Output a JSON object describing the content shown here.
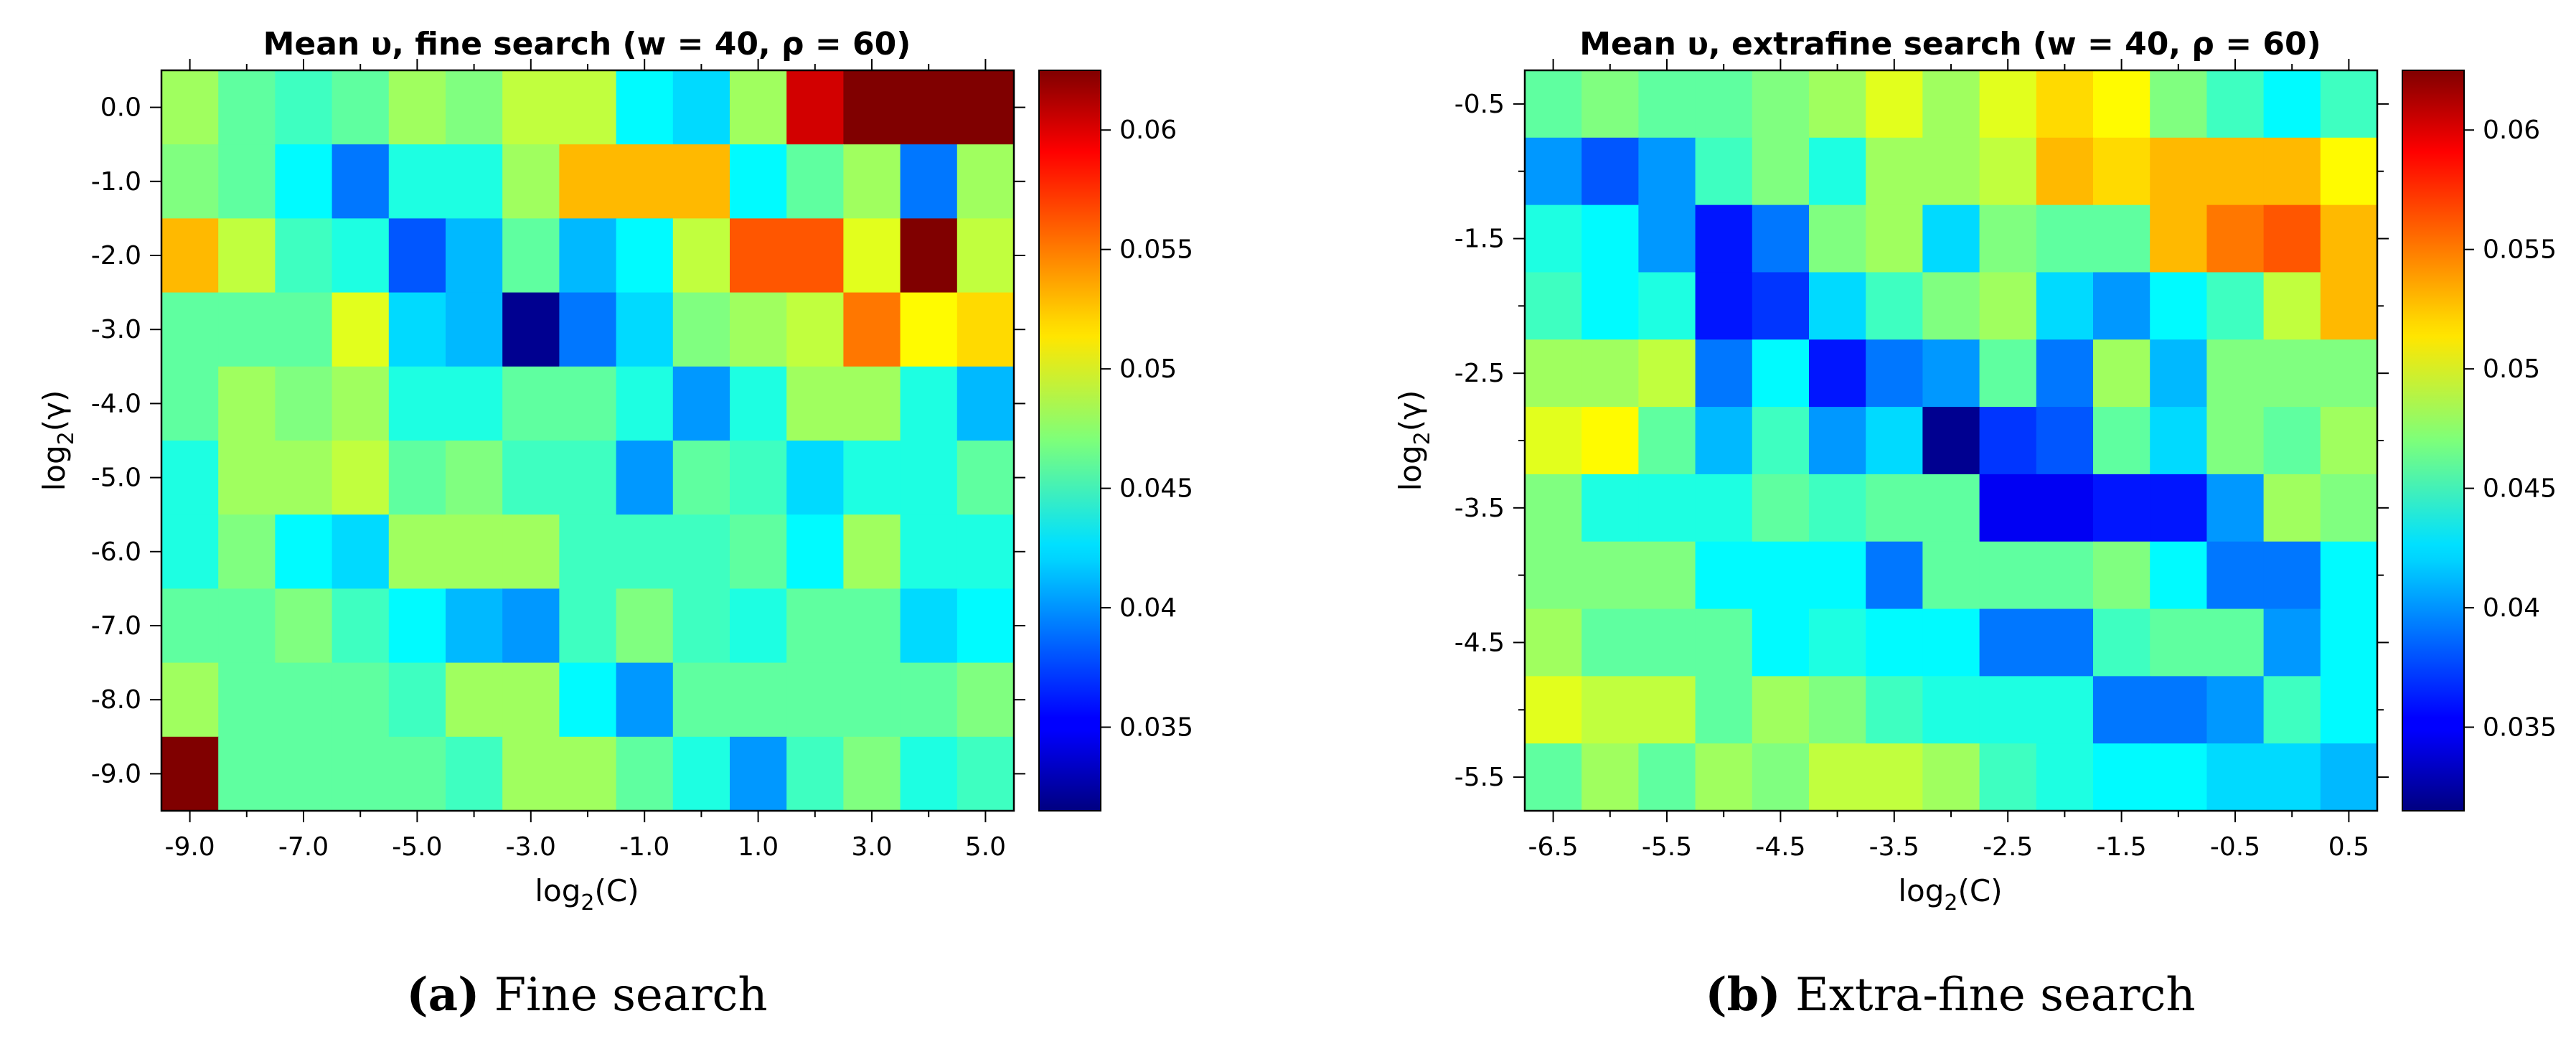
{
  "chart_data": [
    {
      "type": "heatmap",
      "title": "Mean υ, fine search (w = 40, ρ = 60)",
      "xlabel": "log2(C)",
      "ylabel": "log2(γ)",
      "x_tick_labels": [
        "-9.0",
        "-7.0",
        "-5.0",
        "-3.0",
        "-1.0",
        "1.0",
        "3.0",
        "5.0"
      ],
      "y_tick_labels": [
        "0.0",
        "-1.0",
        "-2.0",
        "-3.0",
        "-4.0",
        "-5.0",
        "-6.0",
        "-7.0",
        "-8.0",
        "-9.0"
      ],
      "x_values": [
        -9,
        -8,
        -7,
        -6,
        -5,
        -4,
        -3,
        -2,
        -1,
        0,
        1,
        2,
        3,
        4,
        5
      ],
      "y_values": [
        0,
        -1,
        -2,
        -3,
        -4,
        -5,
        -6,
        -7,
        -8,
        -9
      ],
      "z": [
        [
          0.048,
          0.046,
          0.045,
          0.046,
          0.048,
          0.047,
          0.049,
          0.049,
          0.043,
          0.042,
          0.048,
          0.06,
          0.068,
          0.068,
          0.068
        ],
        [
          0.047,
          0.046,
          0.043,
          0.039,
          0.044,
          0.044,
          0.048,
          0.053,
          0.053,
          0.053,
          0.043,
          0.046,
          0.048,
          0.039,
          0.048
        ],
        [
          0.053,
          0.049,
          0.045,
          0.044,
          0.038,
          0.041,
          0.046,
          0.041,
          0.043,
          0.049,
          0.056,
          0.056,
          0.05,
          0.066,
          0.049
        ],
        [
          0.046,
          0.046,
          0.046,
          0.05,
          0.042,
          0.041,
          0.032,
          0.039,
          0.042,
          0.047,
          0.048,
          0.049,
          0.055,
          0.051,
          0.052
        ],
        [
          0.046,
          0.048,
          0.047,
          0.048,
          0.044,
          0.044,
          0.046,
          0.046,
          0.044,
          0.04,
          0.044,
          0.048,
          0.048,
          0.044,
          0.041
        ],
        [
          0.044,
          0.048,
          0.048,
          0.049,
          0.046,
          0.047,
          0.045,
          0.045,
          0.04,
          0.046,
          0.045,
          0.042,
          0.044,
          0.044,
          0.046
        ],
        [
          0.044,
          0.047,
          0.043,
          0.042,
          0.048,
          0.048,
          0.048,
          0.045,
          0.045,
          0.045,
          0.046,
          0.043,
          0.048,
          0.044,
          0.044
        ],
        [
          0.046,
          0.046,
          0.047,
          0.045,
          0.043,
          0.041,
          0.04,
          0.045,
          0.047,
          0.045,
          0.044,
          0.046,
          0.046,
          0.042,
          0.043
        ],
        [
          0.048,
          0.046,
          0.046,
          0.046,
          0.045,
          0.048,
          0.048,
          0.043,
          0.04,
          0.046,
          0.046,
          0.046,
          0.046,
          0.046,
          0.047
        ],
        [
          0.068,
          0.046,
          0.046,
          0.046,
          0.046,
          0.045,
          0.048,
          0.048,
          0.046,
          0.044,
          0.04,
          0.045,
          0.047,
          0.044,
          0.045
        ]
      ],
      "colorbar": {
        "min": 0.0315,
        "max": 0.0625,
        "tick_values": [
          0.035,
          0.04,
          0.045,
          0.05,
          0.055,
          0.06
        ],
        "tick_labels": [
          "0.035",
          "0.04",
          "0.045",
          "0.05",
          "0.055",
          "0.06"
        ],
        "colormap": "jet"
      },
      "caption_letter": "(a)",
      "caption_text": " Fine search"
    },
    {
      "type": "heatmap",
      "title": "Mean υ, extrafine search (w = 40, ρ = 60)",
      "xlabel": "log2(C)",
      "ylabel": "log2(γ)",
      "x_tick_labels": [
        "-6.5",
        "-5.5",
        "-4.5",
        "-3.5",
        "-2.5",
        "-1.5",
        "-0.5",
        "0.5"
      ],
      "y_tick_labels": [
        "-0.5",
        "-1.5",
        "-2.5",
        "-3.5",
        "-4.5",
        "-5.5"
      ],
      "x_values": [
        -6.5,
        -6.0,
        -5.5,
        -5.0,
        -4.5,
        -4.0,
        -3.5,
        -3.0,
        -2.5,
        -2.0,
        -1.5,
        -1.0,
        -0.5,
        0.0,
        0.5
      ],
      "y_values": [
        -0.5,
        -1.0,
        -1.5,
        -2.0,
        -2.5,
        -3.0,
        -3.5,
        -4.0,
        -4.5,
        -5.0,
        -5.5
      ],
      "z": [
        [
          0.046,
          0.047,
          0.046,
          0.046,
          0.047,
          0.048,
          0.05,
          0.048,
          0.05,
          0.052,
          0.051,
          0.047,
          0.045,
          0.043,
          0.045
        ],
        [
          0.04,
          0.038,
          0.04,
          0.045,
          0.047,
          0.044,
          0.048,
          0.048,
          0.049,
          0.053,
          0.052,
          0.053,
          0.053,
          0.053,
          0.051
        ],
        [
          0.044,
          0.043,
          0.04,
          0.036,
          0.039,
          0.047,
          0.048,
          0.042,
          0.047,
          0.046,
          0.046,
          0.053,
          0.055,
          0.056,
          0.053
        ],
        [
          0.045,
          0.043,
          0.044,
          0.036,
          0.037,
          0.042,
          0.045,
          0.047,
          0.048,
          0.042,
          0.04,
          0.043,
          0.045,
          0.049,
          0.053
        ],
        [
          0.048,
          0.048,
          0.049,
          0.039,
          0.043,
          0.036,
          0.039,
          0.04,
          0.046,
          0.039,
          0.048,
          0.041,
          0.047,
          0.047,
          0.047
        ],
        [
          0.05,
          0.051,
          0.046,
          0.041,
          0.045,
          0.04,
          0.042,
          0.032,
          0.037,
          0.038,
          0.046,
          0.042,
          0.047,
          0.046,
          0.048
        ],
        [
          0.047,
          0.044,
          0.044,
          0.044,
          0.046,
          0.045,
          0.046,
          0.046,
          0.035,
          0.035,
          0.036,
          0.036,
          0.04,
          0.048,
          0.047
        ],
        [
          0.047,
          0.047,
          0.047,
          0.043,
          0.043,
          0.043,
          0.039,
          0.046,
          0.046,
          0.046,
          0.047,
          0.043,
          0.039,
          0.039,
          0.043
        ],
        [
          0.048,
          0.046,
          0.046,
          0.046,
          0.043,
          0.044,
          0.043,
          0.043,
          0.039,
          0.039,
          0.045,
          0.046,
          0.046,
          0.04,
          0.043
        ],
        [
          0.05,
          0.049,
          0.049,
          0.046,
          0.048,
          0.047,
          0.045,
          0.044,
          0.044,
          0.044,
          0.039,
          0.039,
          0.04,
          0.045,
          0.043
        ],
        [
          0.046,
          0.048,
          0.046,
          0.048,
          0.047,
          0.049,
          0.049,
          0.048,
          0.045,
          0.044,
          0.043,
          0.043,
          0.042,
          0.042,
          0.041
        ]
      ],
      "colorbar": {
        "min": 0.0315,
        "max": 0.0625,
        "tick_values": [
          0.035,
          0.04,
          0.045,
          0.05,
          0.055,
          0.06
        ],
        "tick_labels": [
          "0.035",
          "0.04",
          "0.045",
          "0.05",
          "0.055",
          "0.06"
        ],
        "colormap": "jet"
      },
      "caption_letter": "(b)",
      "caption_text": " Extra-fine search"
    }
  ]
}
